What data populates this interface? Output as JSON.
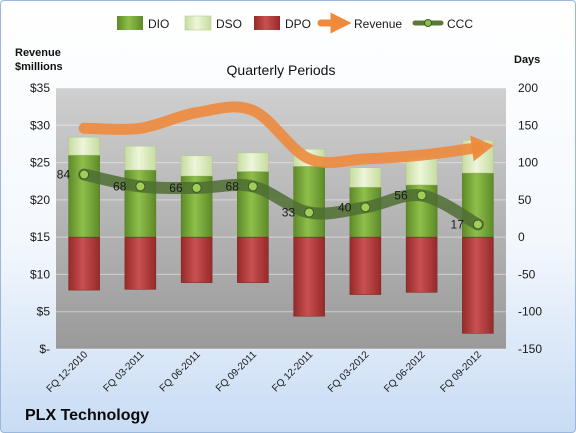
{
  "company": "PLX Technology",
  "chart_data": {
    "type": "bar",
    "title": "Quarterly Periods",
    "y_left_label_line1": "Revenue",
    "y_left_label_line2": "$millions",
    "y_right_label": "Days",
    "categories": [
      "FQ 12-2010",
      "FQ 03-2011",
      "FQ 06-2011",
      "FQ 09-2011",
      "FQ 12-2011",
      "FQ 03-2012",
      "FQ 06-2012",
      "FQ 09-2012"
    ],
    "left_axis": {
      "min": 0,
      "max": 35,
      "step": 5,
      "tick_labels": [
        "$-",
        "$5",
        "$10",
        "$15",
        "$20",
        "$25",
        "$30",
        "$35"
      ]
    },
    "right_axis": {
      "min": -150,
      "max": 200,
      "step": 50,
      "tick_labels": [
        "-150",
        "-100",
        "-50",
        "0",
        "50",
        "100",
        "150",
        "200"
      ]
    },
    "series": [
      {
        "name": "DIO",
        "axis": "right",
        "kind": "stacked-bar-positive",
        "color": "#76a034",
        "values": [
          110,
          90,
          82,
          88,
          95,
          67,
          70,
          86
        ]
      },
      {
        "name": "DSO",
        "axis": "right",
        "kind": "stacked-bar-positive",
        "color": "#d8e8b4",
        "values": [
          24,
          32,
          27,
          25,
          23,
          26,
          37,
          44
        ]
      },
      {
        "name": "DPO",
        "axis": "right",
        "kind": "negative-bar",
        "color": "#b73a3a",
        "values": [
          -71,
          -70,
          -61,
          -61,
          -106,
          -77,
          -74,
          -129
        ]
      },
      {
        "name": "Revenue",
        "axis": "left",
        "kind": "line",
        "color": "#ed8a3c",
        "values": [
          29.6,
          29.6,
          31.7,
          32.0,
          25.5,
          25.5,
          26.0,
          27.0
        ]
      },
      {
        "name": "CCC",
        "axis": "right",
        "kind": "line",
        "color": "#5a7a3a",
        "values": [
          84,
          68,
          66,
          68,
          33,
          40,
          56,
          17
        ]
      }
    ],
    "ccc_labels": [
      "84",
      "68",
      "66",
      "68",
      "33",
      "40",
      "56",
      "17"
    ],
    "legend_position": "top",
    "grid": true
  }
}
